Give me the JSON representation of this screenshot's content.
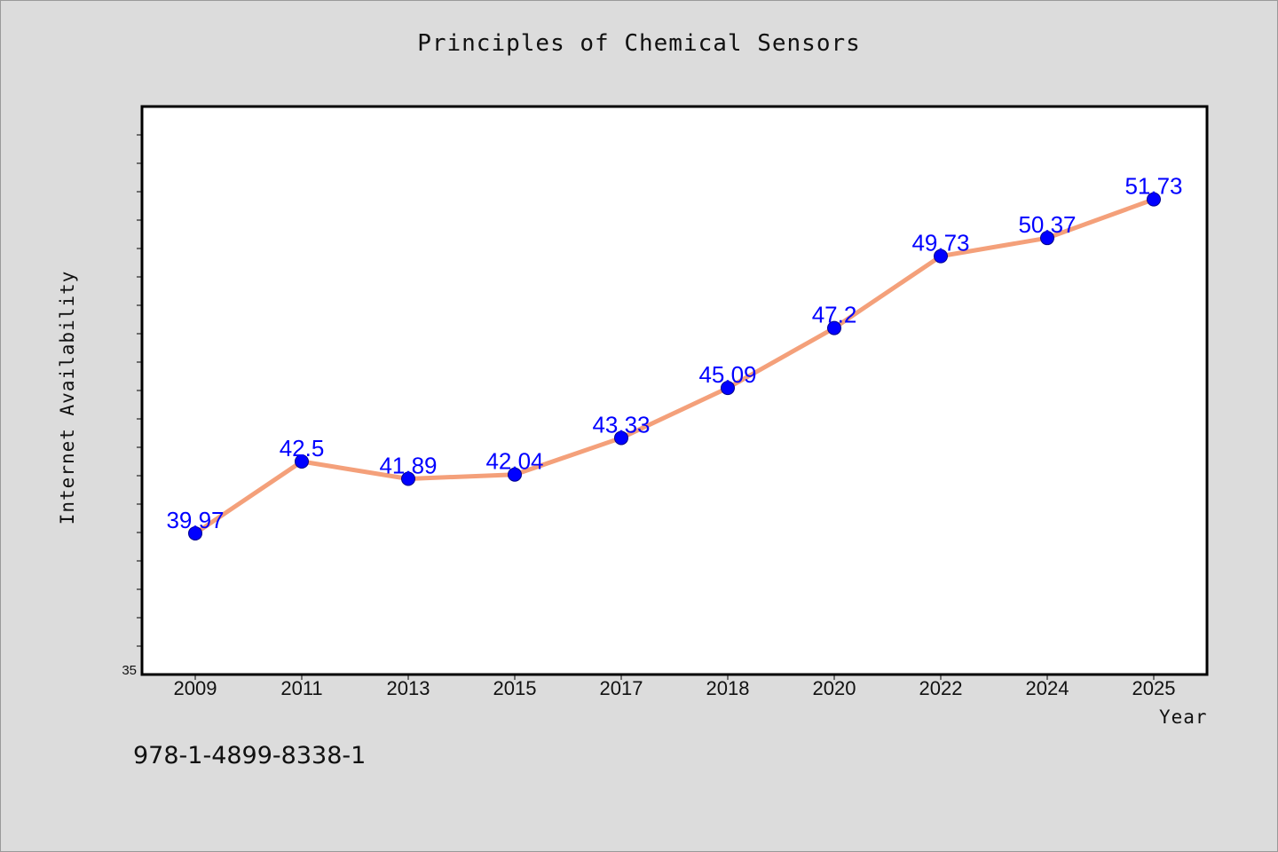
{
  "chart_data": {
    "type": "line",
    "title": "Principles of Chemical Sensors",
    "xlabel": "Year",
    "ylabel": "Internet Availability",
    "categories": [
      "2009",
      "2011",
      "2013",
      "2015",
      "2017",
      "2018",
      "2020",
      "2022",
      "2024",
      "2025"
    ],
    "series": [
      {
        "values": [
          39.97,
          42.5,
          41.89,
          42.04,
          43.33,
          45.09,
          47.2,
          49.73,
          50.37,
          51.73
        ],
        "line_color": "#f4a07a",
        "marker_color": "#0000ff"
      }
    ],
    "data_labels": [
      "39.97",
      "42.5",
      "41.89",
      "42.04",
      "43.33",
      "45.09",
      "47.2",
      "49.73",
      "50.37",
      "51.73"
    ],
    "ylim": [
      35,
      55
    ],
    "y_tick_labels": [
      "35"
    ],
    "grid": false,
    "legend": "none",
    "label_color": "#0000ff"
  },
  "footnote": "978-1-4899-8338-1"
}
